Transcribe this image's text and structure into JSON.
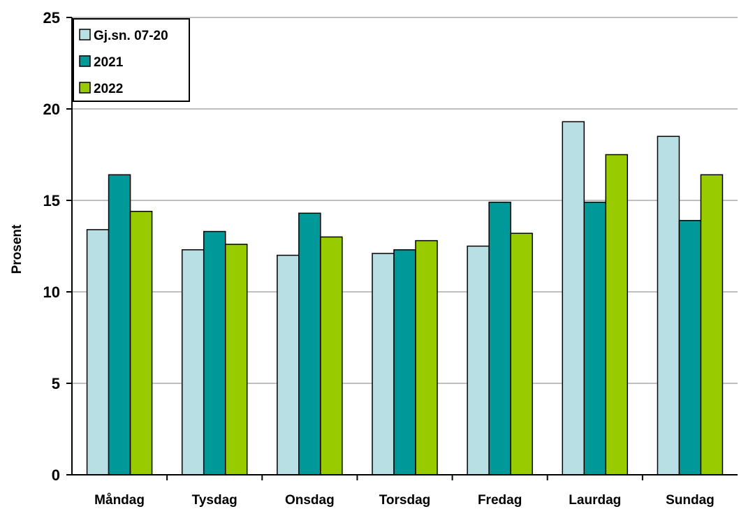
{
  "chart_data": {
    "type": "bar",
    "title": "",
    "xlabel": "",
    "ylabel": "Prosent",
    "ylim": [
      0,
      25
    ],
    "yticks": [
      0,
      5,
      10,
      15,
      20,
      25
    ],
    "grid": true,
    "legend_position": "top-left",
    "categories": [
      "Måndag",
      "Tysdag",
      "Onsdag",
      "Torsdag",
      "Fredag",
      "Laurdag",
      "Sundag"
    ],
    "series": [
      {
        "name": "Gj.sn. 07-20",
        "color": "#b8dfe3",
        "values": [
          13.4,
          12.3,
          12.0,
          12.1,
          12.5,
          19.3,
          18.5
        ]
      },
      {
        "name": "2021",
        "color": "#009999",
        "values": [
          16.4,
          13.3,
          14.3,
          12.3,
          14.9,
          14.9,
          13.9
        ]
      },
      {
        "name": "2022",
        "color": "#99cc00",
        "values": [
          14.4,
          12.6,
          13.0,
          12.8,
          13.2,
          17.5,
          16.4
        ]
      }
    ]
  }
}
